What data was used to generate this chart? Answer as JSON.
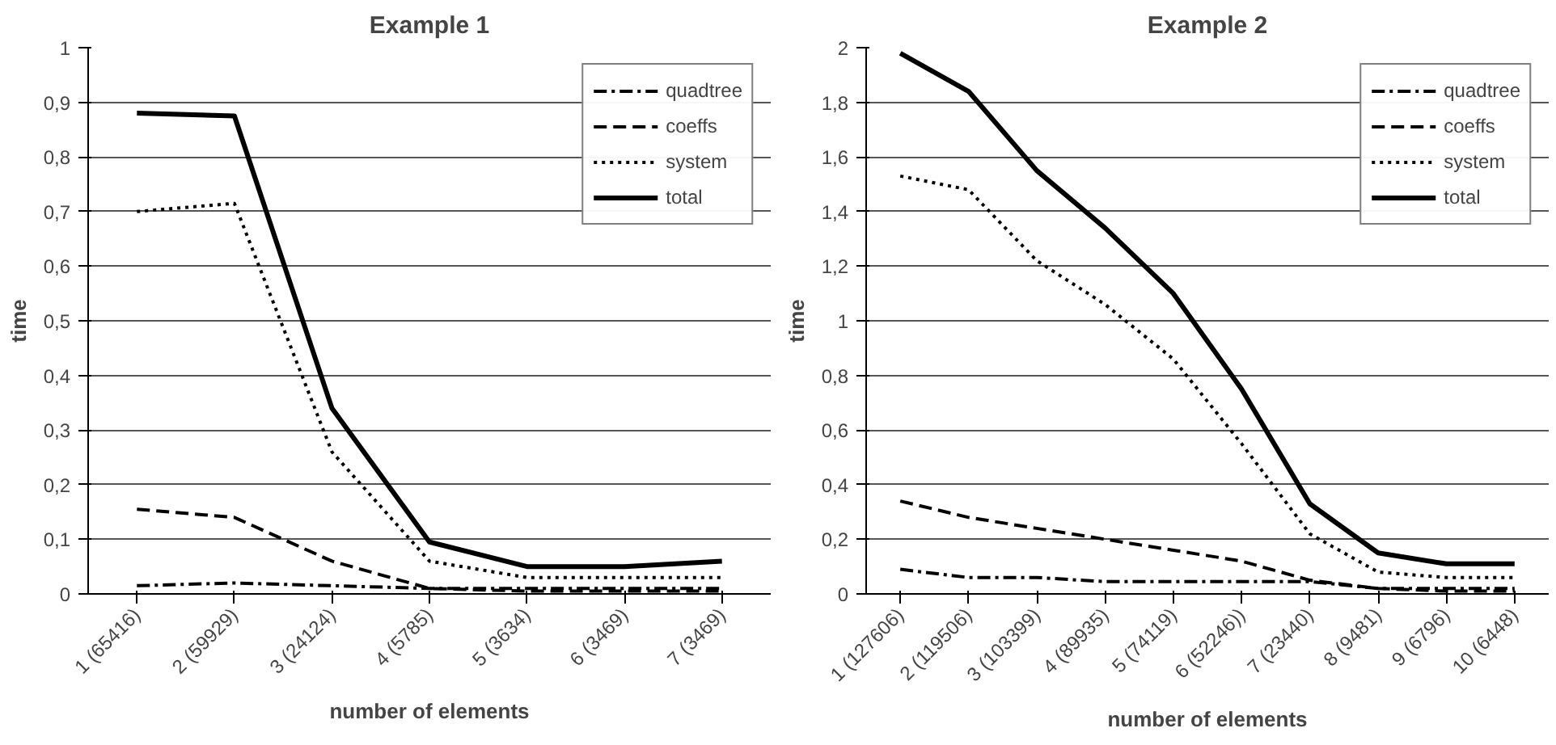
{
  "chart_data": [
    {
      "type": "line",
      "title": "Example 1",
      "xlabel": "number of elements",
      "ylabel": "time",
      "categories": [
        "1 (65416)",
        "2 (59929)",
        "3 (24124)",
        "4 (5785)",
        "5 (3634)",
        "6 (3469)",
        "7 (3469)"
      ],
      "series": [
        {
          "name": "quadtree",
          "color": "#000000",
          "line_style": "dashdot",
          "values": [
            0.015,
            0.02,
            0.015,
            0.01,
            0.01,
            0.01,
            0.01
          ]
        },
        {
          "name": "coeffs",
          "color": "#000000",
          "line_style": "dashed",
          "values": [
            0.155,
            0.14,
            0.06,
            0.01,
            0.005,
            0.005,
            0.005
          ]
        },
        {
          "name": "system",
          "color": "#000000",
          "line_style": "dotted",
          "values": [
            0.7,
            0.715,
            0.26,
            0.06,
            0.03,
            0.03,
            0.03
          ]
        },
        {
          "name": "total",
          "color": "#000000",
          "line_style": "solid",
          "values": [
            0.88,
            0.875,
            0.34,
            0.095,
            0.05,
            0.05,
            0.06
          ]
        }
      ],
      "ylim": [
        0,
        1
      ],
      "yticks": [
        0,
        {
          "value": 0.1,
          "label": "0,1"
        },
        {
          "value": 0.2,
          "label": "0,2"
        },
        {
          "value": 0.3,
          "label": "0,3"
        },
        {
          "value": 0.4,
          "label": "0,4"
        },
        {
          "value": 0.5,
          "label": "0,5"
        },
        {
          "value": 0.6,
          "label": "0,6"
        },
        {
          "value": 0.7,
          "label": "0,7"
        },
        {
          "value": 0.8,
          "label": "0,8"
        },
        {
          "value": 0.9,
          "label": "0,9"
        },
        1
      ],
      "grid": "y",
      "legend": "top right"
    },
    {
      "type": "line",
      "title": "Example 2",
      "xlabel": "number of elements",
      "ylabel": "time",
      "categories": [
        "1 (127606)",
        "2 (119506)",
        "3 (103399)",
        "4 (89935)",
        "5 (74119)",
        "6 (52246))",
        "7 (23440)",
        "8 (9481)",
        "9 (6796)",
        "10 (6448)"
      ],
      "series": [
        {
          "name": "quadtree",
          "color": "#000000",
          "line_style": "dashdot",
          "values": [
            0.09,
            0.06,
            0.06,
            0.045,
            0.045,
            0.045,
            0.045,
            0.02,
            0.02,
            0.02
          ]
        },
        {
          "name": "coeffs",
          "color": "#000000",
          "line_style": "dashed",
          "values": [
            0.34,
            0.28,
            0.24,
            0.2,
            0.16,
            0.12,
            0.05,
            0.02,
            0.01,
            0.01
          ]
        },
        {
          "name": "system",
          "color": "#000000",
          "line_style": "dotted",
          "values": [
            1.53,
            1.48,
            1.22,
            1.06,
            0.86,
            0.55,
            0.22,
            0.08,
            0.06,
            0.06
          ]
        },
        {
          "name": "total",
          "color": "#000000",
          "line_style": "solid",
          "values": [
            1.98,
            1.84,
            1.55,
            1.34,
            1.1,
            0.75,
            0.33,
            0.15,
            0.11,
            0.11
          ]
        }
      ],
      "ylim": [
        0,
        2
      ],
      "yticks": [
        0,
        {
          "value": 0.2,
          "label": "0,2"
        },
        {
          "value": 0.4,
          "label": "0,4"
        },
        {
          "value": 0.6,
          "label": "0,6"
        },
        {
          "value": 0.8,
          "label": "0,8"
        },
        1,
        {
          "value": 1.2,
          "label": "1,2"
        },
        {
          "value": 1.4,
          "label": "1,4"
        },
        {
          "value": 1.6,
          "label": "1,6"
        },
        {
          "value": 1.8,
          "label": "1,8"
        },
        2
      ],
      "grid": "y",
      "legend": "top right"
    }
  ]
}
